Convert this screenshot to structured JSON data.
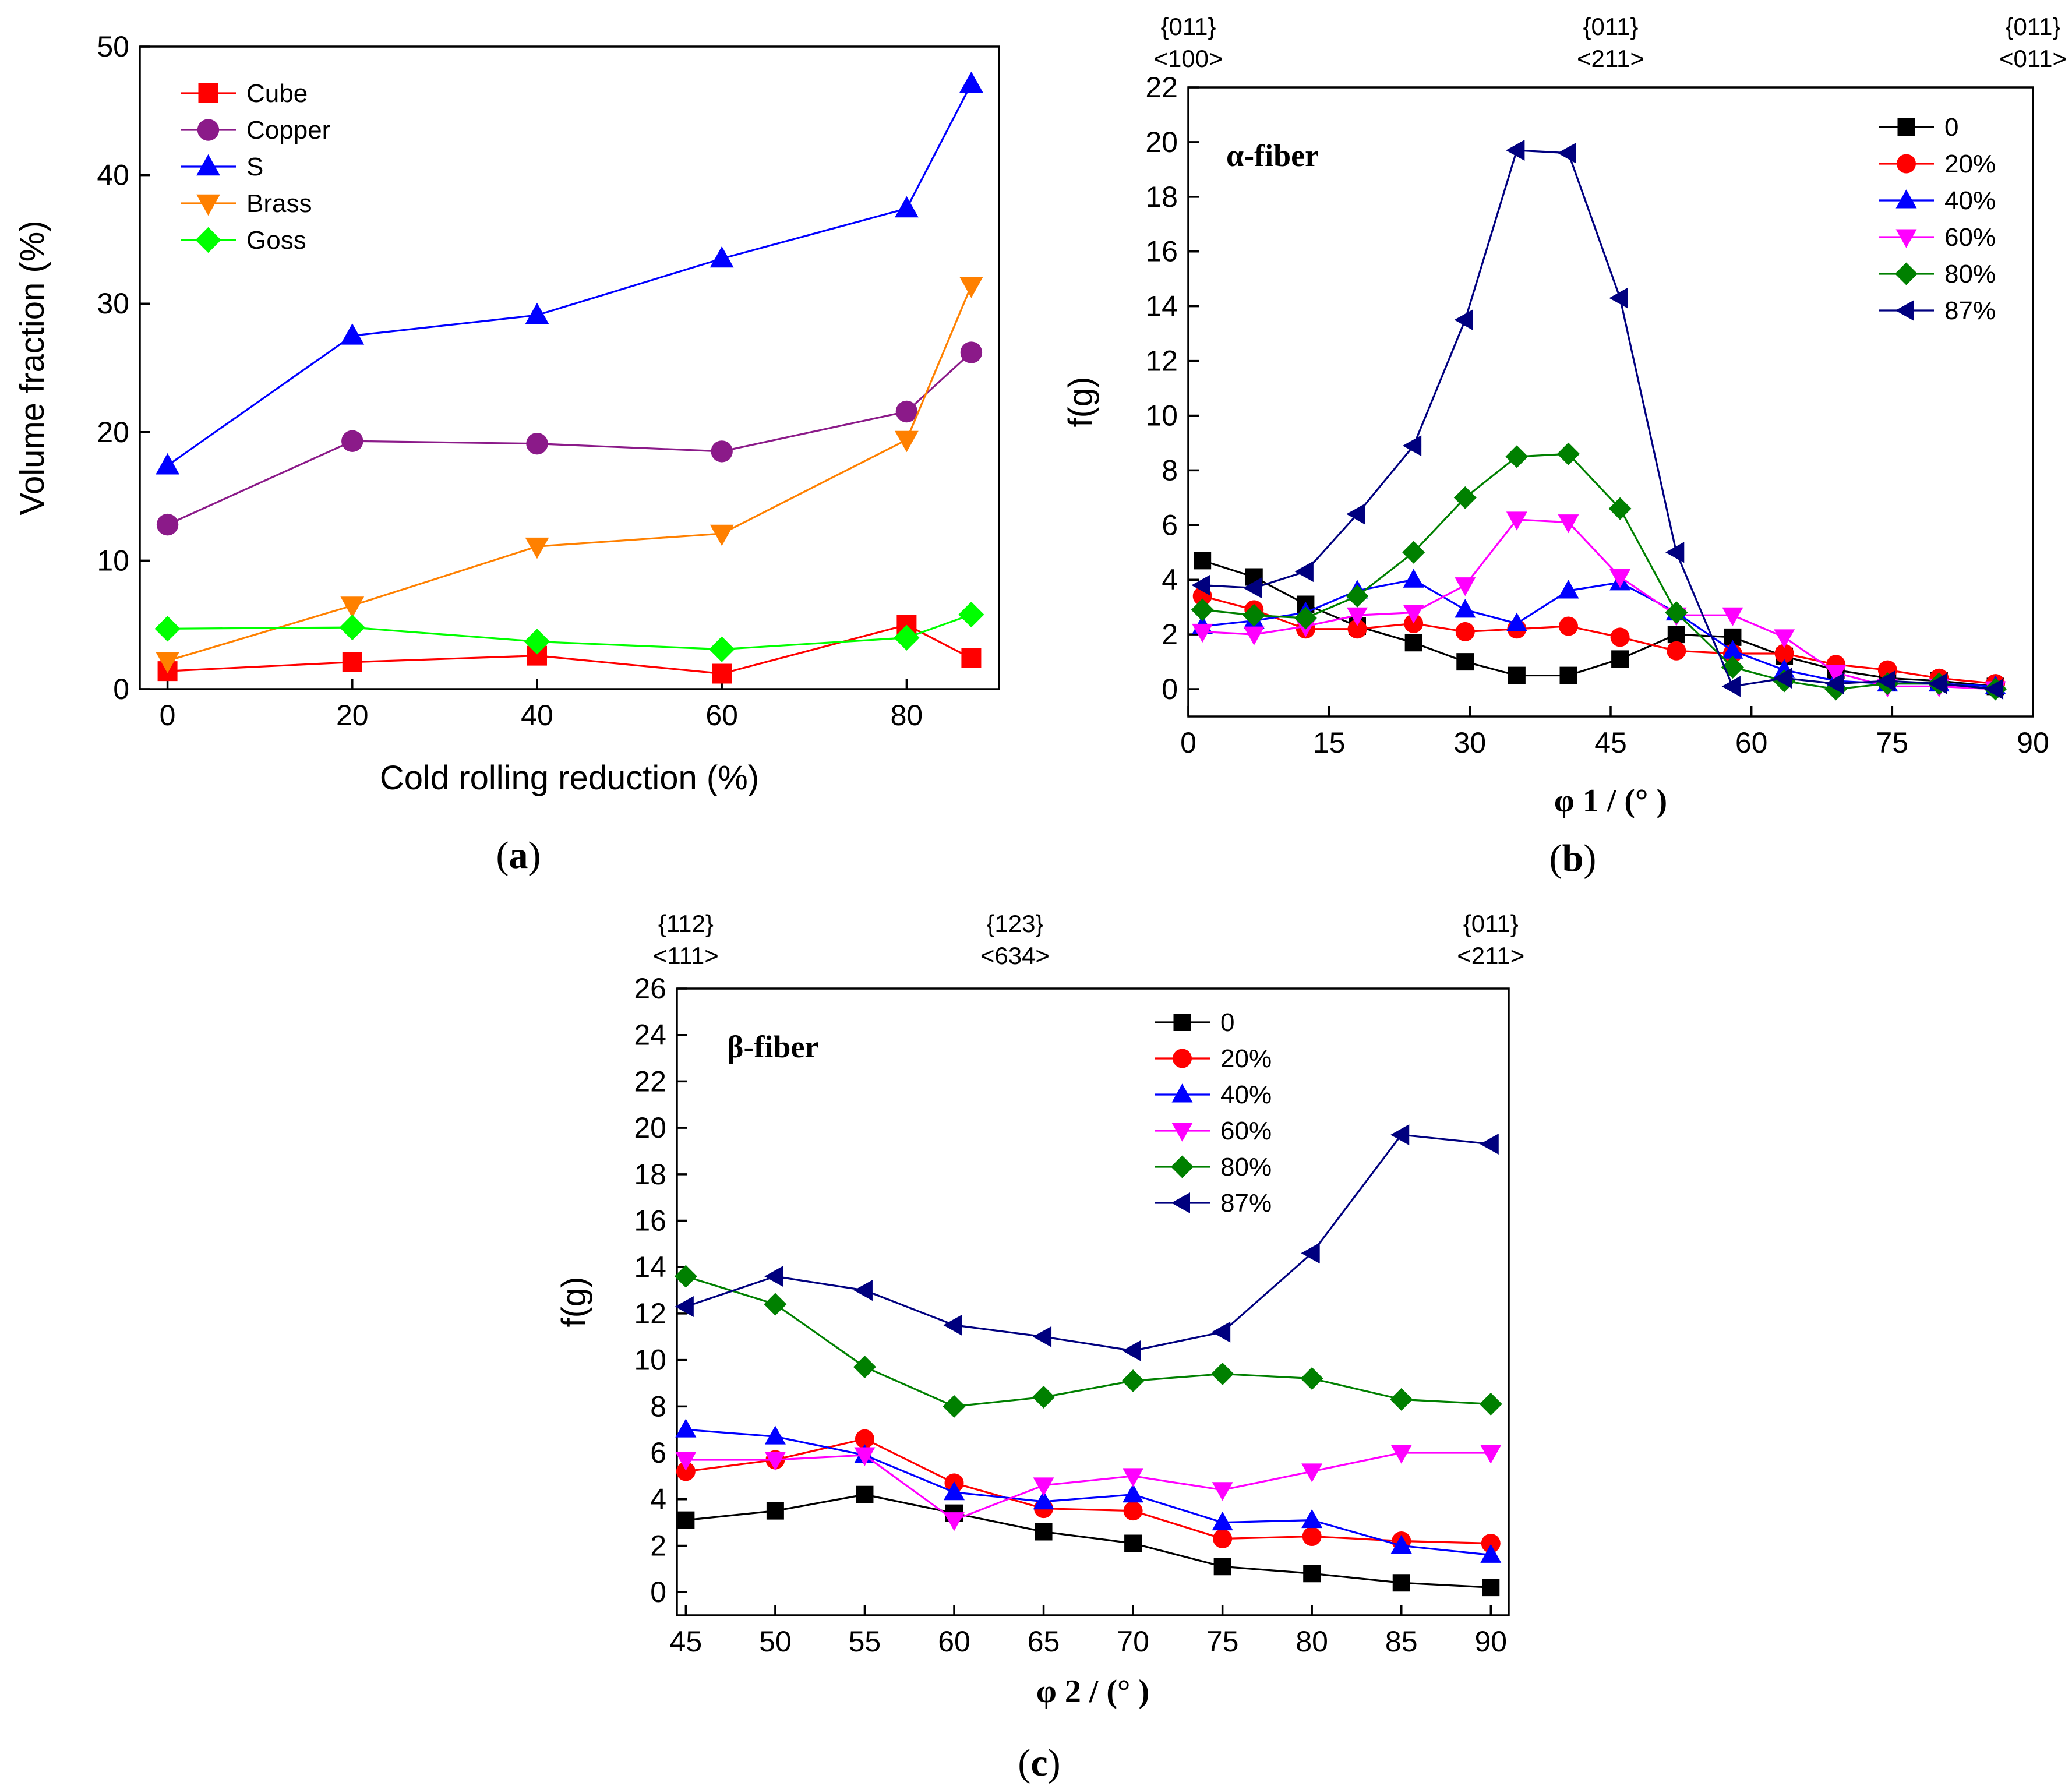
{
  "panels": [
    {
      "id": "a",
      "label": "a",
      "inner_title": "",
      "top_labels": [],
      "chart_data": {
        "type": "line",
        "title": "",
        "xlabel": "Cold rolling reduction (%)",
        "ylabel": "Volume fraction (%)",
        "xlim": [
          -3,
          90
        ],
        "ylim": [
          0,
          50
        ],
        "xticks": [
          0,
          20,
          40,
          60,
          80
        ],
        "yticks": [
          0,
          10,
          20,
          30,
          40,
          50
        ],
        "legend_position": "top-left",
        "series": [
          {
            "name": "Cube",
            "color": "#ff0000",
            "marker": "square",
            "x": [
              0,
              20,
              40,
              60,
              80,
              87
            ],
            "y": [
              1.4,
              2.1,
              2.6,
              1.2,
              5.0,
              2.4
            ]
          },
          {
            "name": "Copper",
            "color": "#8b1a89",
            "marker": "circle",
            "x": [
              0,
              20,
              40,
              60,
              80,
              87
            ],
            "y": [
              12.8,
              19.3,
              19.1,
              18.5,
              21.6,
              26.2
            ]
          },
          {
            "name": "S",
            "color": "#0000ff",
            "marker": "triangle-up",
            "x": [
              0,
              20,
              40,
              60,
              80,
              87
            ],
            "y": [
              17.4,
              27.5,
              29.1,
              33.5,
              37.4,
              47.1
            ]
          },
          {
            "name": "Brass",
            "color": "#ff8000",
            "marker": "triangle-down",
            "x": [
              0,
              20,
              40,
              60,
              80,
              87
            ],
            "y": [
              2.2,
              6.5,
              11.1,
              12.1,
              19.4,
              31.4
            ]
          },
          {
            "name": "Goss",
            "color": "#00ff00",
            "marker": "diamond",
            "x": [
              0,
              20,
              40,
              60,
              80,
              87
            ],
            "y": [
              4.7,
              4.8,
              3.7,
              3.1,
              4.0,
              5.8
            ]
          }
        ]
      }
    },
    {
      "id": "b",
      "label": "b",
      "inner_title": "α-fiber",
      "top_labels": [
        {
          "x": 0,
          "line1": "{011}",
          "line2": "<100>"
        },
        {
          "x": 45,
          "line1": "{011}",
          "line2": "<211>"
        },
        {
          "x": 90,
          "line1": "{011}",
          "line2": "<011>"
        }
      ],
      "chart_data": {
        "type": "line",
        "title": "",
        "xlabel": "φ 1 / (°  )",
        "ylabel": "f(g)",
        "xlim": [
          0,
          90
        ],
        "ylim": [
          -1,
          22
        ],
        "xticks": [
          0,
          15,
          30,
          45,
          60,
          75,
          90
        ],
        "yticks": [
          0,
          2,
          4,
          6,
          8,
          10,
          12,
          14,
          16,
          18,
          20,
          22
        ],
        "legend_position": "top-right",
        "series": [
          {
            "name": "0",
            "color": "#000000",
            "marker": "square",
            "x": [
              1.5,
              7,
              12.5,
              18,
              24,
              29.5,
              35,
              40.5,
              46,
              52,
              58,
              63.5,
              69,
              74.5,
              80,
              86
            ],
            "y": [
              4.7,
              4.1,
              3.1,
              2.3,
              1.7,
              1.0,
              0.5,
              0.5,
              1.1,
              2.0,
              1.9,
              1.2,
              0.7,
              0.4,
              0.3,
              0.1
            ]
          },
          {
            "name": "20%",
            "color": "#ff0000",
            "marker": "circle",
            "x": [
              1.5,
              7,
              12.5,
              18,
              24,
              29.5,
              35,
              40.5,
              46,
              52,
              58,
              63.5,
              69,
              74.5,
              80,
              86
            ],
            "y": [
              3.4,
              2.9,
              2.2,
              2.2,
              2.4,
              2.1,
              2.2,
              2.3,
              1.9,
              1.4,
              1.3,
              1.3,
              0.9,
              0.7,
              0.4,
              0.2
            ]
          },
          {
            "name": "40%",
            "color": "#0000ff",
            "marker": "triangle-up",
            "x": [
              1.5,
              7,
              12.5,
              18,
              24,
              29.5,
              35,
              40.5,
              46,
              52,
              58,
              63.5,
              69,
              74.5,
              80,
              86
            ],
            "y": [
              2.3,
              2.5,
              2.8,
              3.6,
              4.0,
              2.9,
              2.4,
              3.6,
              3.9,
              2.8,
              1.4,
              0.7,
              0.3,
              0.2,
              0.2,
              0.1
            ]
          },
          {
            "name": "60%",
            "color": "#ff00ff",
            "marker": "triangle-down",
            "x": [
              1.5,
              7,
              12.5,
              18,
              24,
              29.5,
              35,
              40.5,
              46,
              52,
              58,
              63.5,
              69,
              74.5,
              80,
              86
            ],
            "y": [
              2.1,
              2.0,
              2.3,
              2.7,
              2.8,
              3.8,
              6.2,
              6.1,
              4.1,
              2.7,
              2.7,
              1.9,
              0.6,
              0.1,
              0.1,
              0.0
            ]
          },
          {
            "name": "80%",
            "color": "#008000",
            "marker": "diamond",
            "x": [
              1.5,
              7,
              12.5,
              18,
              24,
              29.5,
              35,
              40.5,
              46,
              52,
              58,
              63.5,
              69,
              74.5,
              80,
              86
            ],
            "y": [
              2.9,
              2.7,
              2.6,
              3.4,
              5.0,
              7.0,
              8.5,
              8.6,
              6.6,
              2.8,
              0.8,
              0.3,
              0.0,
              0.2,
              0.2,
              0.0
            ]
          },
          {
            "name": "87%",
            "color": "#00007f",
            "marker": "triangle-left",
            "x": [
              1.5,
              7,
              12.5,
              18,
              24,
              29.5,
              35,
              40.5,
              46,
              52,
              58,
              63.5,
              69,
              74.5,
              80,
              86
            ],
            "y": [
              3.8,
              3.7,
              4.3,
              6.4,
              8.9,
              13.5,
              19.7,
              19.6,
              14.3,
              5.0,
              0.1,
              0.4,
              0.2,
              0.3,
              0.2,
              0.0
            ]
          }
        ]
      }
    },
    {
      "id": "c",
      "label": "c",
      "inner_title": "β-fiber",
      "top_labels": [
        {
          "x": 45,
          "line1": "{112}",
          "line2": "<111>"
        },
        {
          "x": 63.4,
          "line1": "{123}",
          "line2": "<634>"
        },
        {
          "x": 90,
          "line1": "{011}",
          "line2": "<211>"
        }
      ],
      "chart_data": {
        "type": "line",
        "title": "",
        "xlabel": "φ 2 / (°  )",
        "ylabel": "f(g)",
        "xlim": [
          44.5,
          91
        ],
        "ylim": [
          -1,
          26
        ],
        "xticks": [
          45,
          50,
          55,
          60,
          65,
          70,
          75,
          80,
          85,
          90
        ],
        "yticks": [
          0,
          2,
          4,
          6,
          8,
          10,
          12,
          14,
          16,
          18,
          20,
          22,
          24,
          26
        ],
        "legend_position": "top-center",
        "series": [
          {
            "name": "0",
            "color": "#000000",
            "marker": "square",
            "x": [
              45,
              50,
              55,
              60,
              65,
              70,
              75,
              80,
              85,
              90
            ],
            "y": [
              3.1,
              3.5,
              4.2,
              3.4,
              2.6,
              2.1,
              1.1,
              0.8,
              0.4,
              0.2
            ]
          },
          {
            "name": "20%",
            "color": "#ff0000",
            "marker": "circle",
            "x": [
              45,
              50,
              55,
              60,
              65,
              70,
              75,
              80,
              85,
              90
            ],
            "y": [
              5.2,
              5.7,
              6.6,
              4.7,
              3.6,
              3.5,
              2.3,
              2.4,
              2.2,
              2.1
            ]
          },
          {
            "name": "40%",
            "color": "#0000ff",
            "marker": "triangle-up",
            "x": [
              45,
              50,
              55,
              60,
              65,
              70,
              75,
              80,
              85,
              90
            ],
            "y": [
              7.0,
              6.7,
              5.9,
              4.3,
              3.9,
              4.2,
              3.0,
              3.1,
              2.0,
              1.6
            ]
          },
          {
            "name": "60%",
            "color": "#ff00ff",
            "marker": "triangle-down",
            "x": [
              45,
              50,
              55,
              60,
              65,
              70,
              75,
              80,
              85,
              90
            ],
            "y": [
              5.7,
              5.7,
              5.9,
              3.1,
              4.6,
              5.0,
              4.4,
              5.2,
              6.0,
              6.0
            ]
          },
          {
            "name": "80%",
            "color": "#008000",
            "marker": "diamond",
            "x": [
              45,
              50,
              55,
              60,
              65,
              70,
              75,
              80,
              85,
              90
            ],
            "y": [
              13.6,
              12.4,
              9.7,
              8.0,
              8.4,
              9.1,
              9.4,
              9.2,
              8.3,
              8.1
            ]
          },
          {
            "name": "87%",
            "color": "#00007f",
            "marker": "triangle-left",
            "x": [
              45,
              50,
              55,
              60,
              65,
              70,
              75,
              80,
              85,
              90
            ],
            "y": [
              12.3,
              13.6,
              13.0,
              11.5,
              11.0,
              10.4,
              11.2,
              14.6,
              19.7,
              19.3
            ]
          }
        ]
      }
    }
  ]
}
